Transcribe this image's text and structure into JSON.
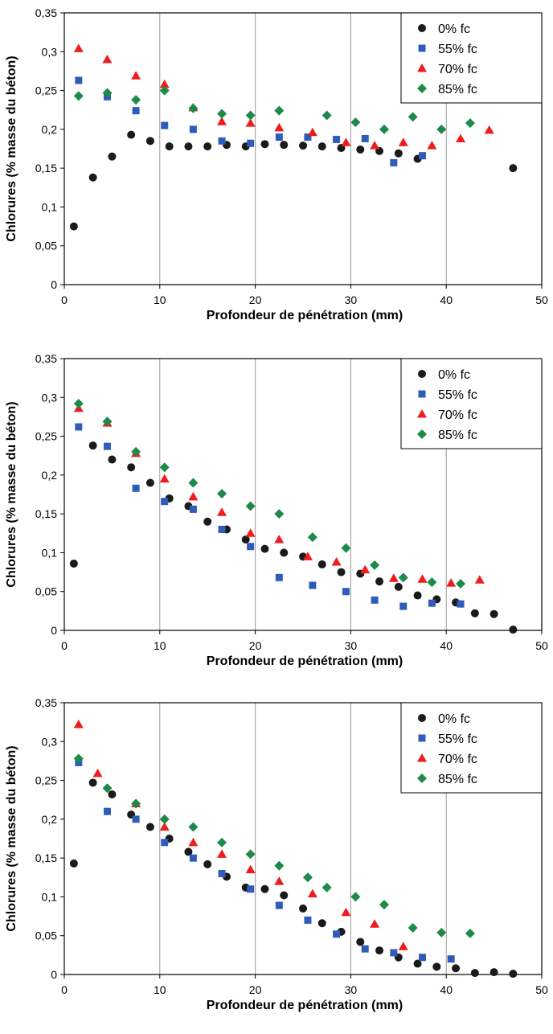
{
  "chart_data": [
    {
      "type": "scatter",
      "xlabel": "Profondeur de pénétration (mm)",
      "ylabel": "Chlorures (% masse du béton)",
      "xlim": [
        0,
        50
      ],
      "ylim": [
        0,
        0.35
      ],
      "x_ticks": [
        "0",
        "10",
        "20",
        "30",
        "40",
        "50"
      ],
      "y_ticks": [
        "0",
        "0,05",
        "0,1",
        "0,15",
        "0,2",
        "0,25",
        "0,3",
        "0,35"
      ],
      "grid": "vertical",
      "legend": "top-right",
      "series": [
        {
          "name": "0% fc",
          "color": "#1a1a1a",
          "marker": "circle",
          "x": [
            1,
            3,
            5,
            7,
            9,
            11,
            13,
            15,
            17,
            19,
            21,
            23,
            25,
            27,
            29,
            31,
            33,
            35,
            37,
            47
          ],
          "y": [
            0.075,
            0.138,
            0.165,
            0.193,
            0.185,
            0.178,
            0.178,
            0.178,
            0.18,
            0.178,
            0.181,
            0.18,
            0.179,
            0.178,
            0.176,
            0.174,
            0.172,
            0.169,
            0.162,
            0.15
          ]
        },
        {
          "name": "55% fc",
          "color": "#2e5cb8",
          "marker": "square",
          "x": [
            1.5,
            4.5,
            7.5,
            10.5,
            13.5,
            16.5,
            19.5,
            22.5,
            25.5,
            28.5,
            31.5,
            34.5,
            37.5
          ],
          "y": [
            0.263,
            0.242,
            0.224,
            0.205,
            0.2,
            0.185,
            0.182,
            0.19,
            0.19,
            0.187,
            0.188,
            0.157,
            0.166
          ]
        },
        {
          "name": "70% fc",
          "color": "#ee1c1c",
          "marker": "triangle",
          "x": [
            1.5,
            4.5,
            7.5,
            10.5,
            13.5,
            16.5,
            19.5,
            22.5,
            26,
            29.5,
            32.5,
            35.5,
            38.5,
            41.5,
            44.5
          ],
          "y": [
            0.304,
            0.29,
            0.269,
            0.258,
            0.228,
            0.21,
            0.208,
            0.202,
            0.196,
            0.183,
            0.179,
            0.183,
            0.179,
            0.188,
            0.199
          ]
        },
        {
          "name": "85% fc",
          "color": "#1d8a4a",
          "marker": "diamond",
          "x": [
            1.5,
            4.5,
            7.5,
            10.5,
            13.5,
            16.5,
            19.5,
            22.5,
            27.5,
            30.5,
            33.5,
            36.5,
            39.5,
            42.5
          ],
          "y": [
            0.243,
            0.247,
            0.238,
            0.25,
            0.227,
            0.22,
            0.218,
            0.224,
            0.218,
            0.209,
            0.2,
            0.216,
            0.2,
            0.208
          ]
        }
      ]
    },
    {
      "type": "scatter",
      "xlabel": "Profondeur de pénétration (mm)",
      "ylabel": "Chlorures (% masse du béton)",
      "xlim": [
        0,
        50
      ],
      "ylim": [
        0,
        0.35
      ],
      "x_ticks": [
        "0",
        "10",
        "20",
        "30",
        "40",
        "50"
      ],
      "y_ticks": [
        "0",
        "0,05",
        "0,1",
        "0,15",
        "0,2",
        "0,25",
        "0,3",
        "0,35"
      ],
      "grid": "vertical",
      "legend": "top-right",
      "series": [
        {
          "name": "0% fc",
          "color": "#1a1a1a",
          "marker": "circle",
          "x": [
            1,
            3,
            5,
            7,
            9,
            11,
            13,
            15,
            17,
            19,
            21,
            23,
            25,
            27,
            29,
            31,
            33,
            35,
            37,
            39,
            41,
            43,
            45,
            47
          ],
          "y": [
            0.086,
            0.238,
            0.22,
            0.21,
            0.19,
            0.17,
            0.16,
            0.14,
            0.13,
            0.117,
            0.105,
            0.1,
            0.095,
            0.085,
            0.075,
            0.073,
            0.063,
            0.056,
            0.045,
            0.04,
            0.036,
            0.022,
            0.021,
            0.001
          ]
        },
        {
          "name": "55% fc",
          "color": "#2e5cb8",
          "marker": "square",
          "x": [
            1.5,
            4.5,
            7.5,
            10.5,
            13.5,
            16.5,
            19.5,
            22.5,
            26,
            29.5,
            32.5,
            35.5,
            38.5,
            41.5
          ],
          "y": [
            0.262,
            0.237,
            0.183,
            0.166,
            0.156,
            0.13,
            0.108,
            0.068,
            0.058,
            0.05,
            0.039,
            0.031,
            0.035,
            0.034
          ]
        },
        {
          "name": "70% fc",
          "color": "#ee1c1c",
          "marker": "triangle",
          "x": [
            1.5,
            4.5,
            7.5,
            10.5,
            13.5,
            16.5,
            19.5,
            22.5,
            25.5,
            28.5,
            31.5,
            34.5,
            37.5,
            40.5,
            43.5
          ],
          "y": [
            0.286,
            0.267,
            0.228,
            0.195,
            0.172,
            0.152,
            0.125,
            0.117,
            0.095,
            0.088,
            0.078,
            0.067,
            0.066,
            0.061,
            0.065
          ]
        },
        {
          "name": "85% fc",
          "color": "#1d8a4a",
          "marker": "diamond",
          "x": [
            1.5,
            4.5,
            7.5,
            10.5,
            13.5,
            16.5,
            19.5,
            22.5,
            26,
            29.5,
            32.5,
            35.5,
            38.5,
            41.5
          ],
          "y": [
            0.292,
            0.269,
            0.23,
            0.21,
            0.19,
            0.176,
            0.16,
            0.15,
            0.12,
            0.106,
            0.084,
            0.068,
            0.062,
            0.06
          ]
        }
      ]
    },
    {
      "type": "scatter",
      "xlabel": "Profondeur de pénétration (mm)",
      "ylabel": "Chlorures (% masse du béton)",
      "xlim": [
        0,
        50
      ],
      "ylim": [
        0,
        0.35
      ],
      "x_ticks": [
        "0",
        "10",
        "20",
        "30",
        "40",
        "50"
      ],
      "y_ticks": [
        "0",
        "0,05",
        "0,1",
        "0,15",
        "0,2",
        "0,25",
        "0,3",
        "0,35"
      ],
      "grid": "vertical",
      "legend": "top-right",
      "series": [
        {
          "name": "0% fc",
          "color": "#1a1a1a",
          "marker": "circle",
          "x": [
            1,
            3,
            5,
            7,
            9,
            11,
            13,
            15,
            17,
            19,
            21,
            23,
            25,
            27,
            29,
            31,
            33,
            35,
            37,
            39,
            41,
            43,
            45,
            47
          ],
          "y": [
            0.143,
            0.247,
            0.232,
            0.206,
            0.19,
            0.175,
            0.158,
            0.142,
            0.126,
            0.112,
            0.11,
            0.102,
            0.085,
            0.066,
            0.055,
            0.042,
            0.031,
            0.022,
            0.014,
            0.01,
            0.008,
            0.002,
            0.003,
            0.001
          ]
        },
        {
          "name": "55% fc",
          "color": "#2e5cb8",
          "marker": "square",
          "x": [
            1.5,
            4.5,
            7.5,
            10.5,
            13.5,
            16.5,
            19.5,
            22.5,
            25.5,
            28.5,
            31.5,
            34.5,
            37.5,
            40.5
          ],
          "y": [
            0.273,
            0.21,
            0.2,
            0.17,
            0.15,
            0.13,
            0.11,
            0.089,
            0.07,
            0.052,
            0.033,
            0.028,
            0.022,
            0.02
          ]
        },
        {
          "name": "70% fc",
          "color": "#ee1c1c",
          "marker": "triangle",
          "x": [
            1.5,
            3.5,
            7.5,
            10.5,
            13.5,
            16.5,
            19.5,
            22.5,
            26,
            29.5,
            32.5,
            35.5
          ],
          "y": [
            0.322,
            0.259,
            0.22,
            0.19,
            0.17,
            0.155,
            0.135,
            0.12,
            0.104,
            0.08,
            0.065,
            0.036
          ]
        },
        {
          "name": "85% fc",
          "color": "#1d8a4a",
          "marker": "diamond",
          "x": [
            1.5,
            4.5,
            7.5,
            10.5,
            13.5,
            16.5,
            19.5,
            22.5,
            25.5,
            27.5,
            30.5,
            33.5,
            36.5,
            39.5,
            42.5
          ],
          "y": [
            0.278,
            0.24,
            0.22,
            0.2,
            0.19,
            0.17,
            0.155,
            0.14,
            0.125,
            0.112,
            0.1,
            0.09,
            0.06,
            0.054,
            0.053
          ]
        }
      ]
    }
  ]
}
